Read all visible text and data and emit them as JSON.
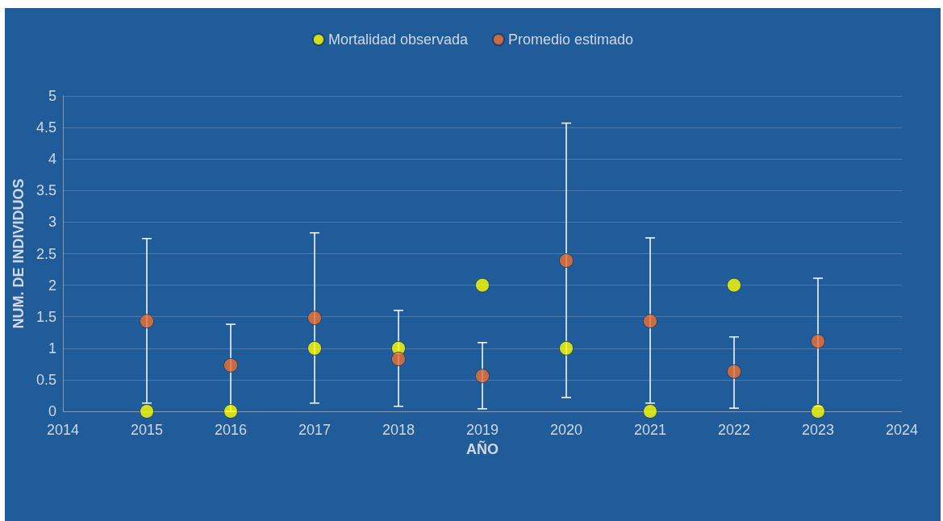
{
  "chart_data": {
    "type": "scatter",
    "xlabel": "AÑO",
    "ylabel": "NUM. DE INDIVIDUOS",
    "x": [
      2015,
      2016,
      2017,
      2018,
      2019,
      2020,
      2021,
      2022,
      2023
    ],
    "series": [
      {
        "name": "Mortalidad observada",
        "color": "#ffff00",
        "values": [
          0,
          0,
          1,
          1,
          2,
          1,
          0,
          2,
          0
        ]
      },
      {
        "name": "Promedio estimado",
        "color": "#f07032",
        "values": [
          1.43,
          0.73,
          1.48,
          0.83,
          0.56,
          2.39,
          1.43,
          0.63,
          1.11
        ],
        "errors": [
          [
            0.13,
            2.74
          ],
          [
            0,
            1.38
          ],
          [
            0.13,
            2.83
          ],
          [
            0.08,
            1.6
          ],
          [
            0.04,
            1.09
          ],
          [
            0.22,
            4.57
          ],
          [
            0.13,
            2.75
          ],
          [
            0.05,
            1.18
          ],
          [
            0.08,
            2.11
          ]
        ]
      }
    ],
    "xlim": [
      2014,
      2024
    ],
    "xticks": [
      2014,
      2015,
      2016,
      2017,
      2018,
      2019,
      2020,
      2021,
      2022,
      2023,
      2024
    ],
    "ylim": [
      0,
      5
    ],
    "yticks": [
      0,
      0.5,
      1,
      1.5,
      2,
      2.5,
      3,
      3.5,
      4,
      4.5,
      5
    ],
    "grid": "y",
    "legend": "top",
    "marker": "circle"
  }
}
